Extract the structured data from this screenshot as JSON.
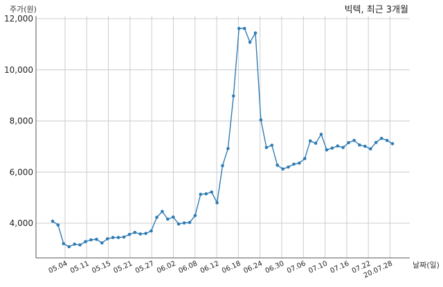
{
  "chart_data": {
    "type": "line",
    "title": "빅텍, 최근 3개월",
    "ylabel": "주가(원)",
    "xlabel": "날짜(일)",
    "ylim": [
      2700,
      12000
    ],
    "y_ticks": [
      4000,
      6000,
      8000,
      10000,
      12000
    ],
    "y_tick_labels": [
      "4,000",
      "6,000",
      "8,000",
      "10,000",
      "12,000"
    ],
    "x_tick_labels": [
      "05.04",
      "05.11",
      "05.15",
      "05.21",
      "05.27",
      "06.02",
      "06.08",
      "06.12",
      "06.18",
      "06.24",
      "06.30",
      "07.06",
      "07.10",
      "07.16",
      "07.22",
      "20.07.28"
    ],
    "grid": true,
    "colors": {
      "line": "#2e7bb4",
      "grid": "#cccccc"
    },
    "series": [
      {
        "values": [
          4080,
          3930,
          3200,
          3080,
          3180,
          3150,
          3280,
          3350,
          3370,
          3230,
          3390,
          3440,
          3440,
          3460,
          3560,
          3640,
          3580,
          3600,
          3700,
          4230,
          4460,
          4160,
          4240,
          3970,
          4010,
          4030,
          4300,
          5130,
          5150,
          5220,
          4800,
          6250,
          6920,
          8980,
          11620,
          11620,
          11080,
          11440,
          8040,
          6960,
          7050,
          6270,
          6120,
          6200,
          6310,
          6350,
          6530,
          7220,
          7130,
          7480,
          6870,
          6940,
          7020,
          6960,
          7150,
          7240,
          7060,
          7010,
          6910,
          7160,
          7320,
          7240,
          7110
        ]
      }
    ]
  }
}
